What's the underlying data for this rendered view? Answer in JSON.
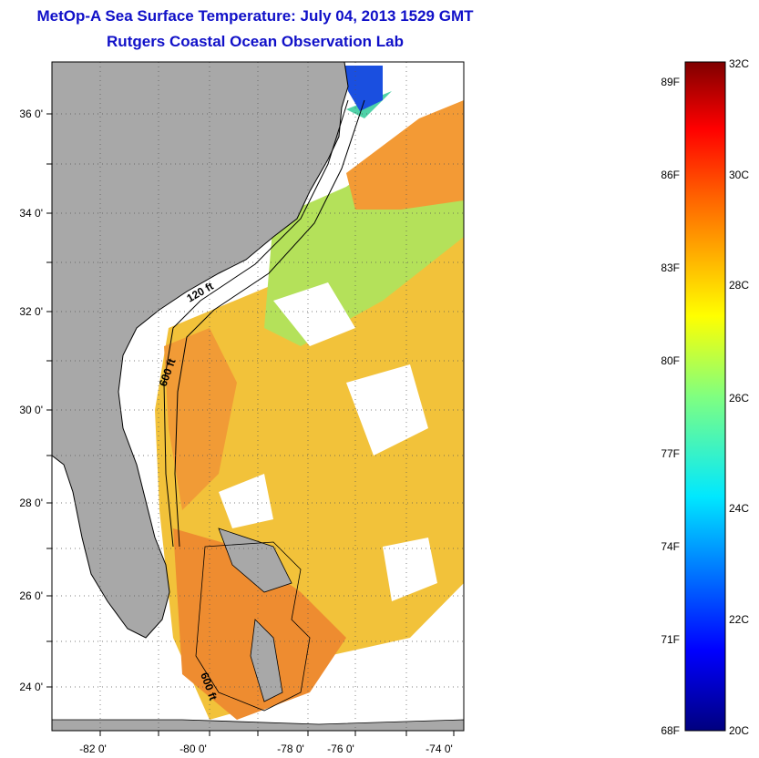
{
  "header": {
    "title": "MetOp-A Sea Surface Temperature:  July 04, 2013 1529 GMT",
    "subtitle": "Rutgers Coastal Ocean Observation Lab"
  },
  "map": {
    "lon_ticks": [
      "-82 0'",
      "-80 0'",
      "-78 0'",
      "-76 0'",
      "-74 0'"
    ],
    "lat_ticks": [
      "36 0'",
      "34 0'",
      "32 0'",
      "30 0'",
      "28 0'",
      "26 0'",
      "24 0'"
    ],
    "contour_labels": [
      "120 ft",
      "600 ft",
      "600 ft"
    ],
    "land_color": "#a8a8a8",
    "no_data_color": "#ffffff"
  },
  "colorbar": {
    "fahrenheit_labels": [
      "89F",
      "86F",
      "83F",
      "80F",
      "77F",
      "74F",
      "71F",
      "68F"
    ],
    "celsius_labels": [
      "32C",
      "30C",
      "28C",
      "26C",
      "24C",
      "22C",
      "20C"
    ],
    "range_c": [
      20,
      32
    ]
  }
}
